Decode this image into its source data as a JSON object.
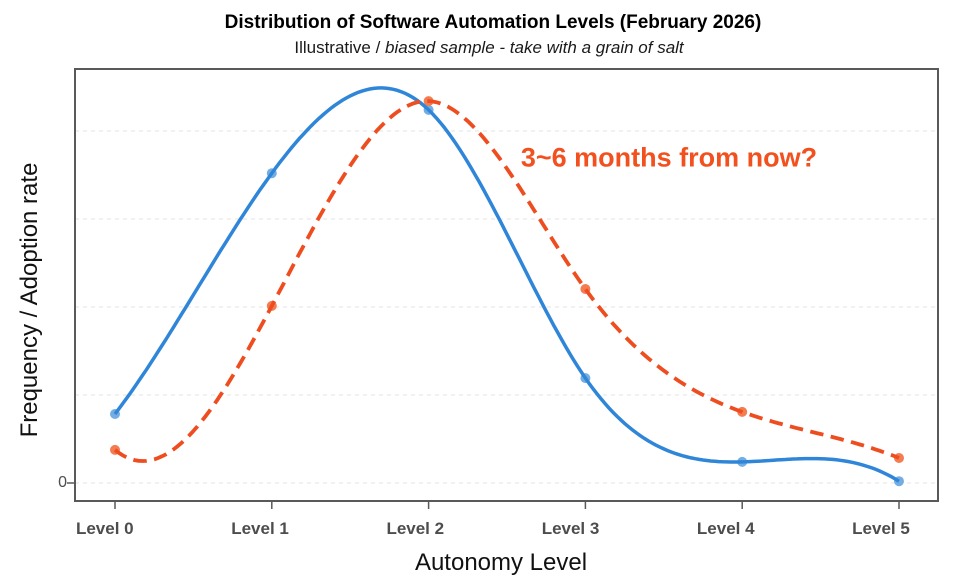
{
  "title": "Distribution of Software Automation Levels (February 2026)",
  "subtitle": {
    "regular": "Illustrative / ",
    "italic": "biased sample - take with a grain of salt"
  },
  "annotation": {
    "text": "3~6 months from now?",
    "color": "#f2501e"
  },
  "chart_data": {
    "type": "line",
    "categories": [
      "Level 0",
      "Level 1",
      "Level 2",
      "Level 3",
      "Level 4",
      "Level 5"
    ],
    "xlabel": "Autonomy Level",
    "ylabel": "Frequency / Adoption rate",
    "y_tick_labels": [
      "0"
    ],
    "ylim": [
      -0.05,
      1.18
    ],
    "grid_values": [
      0,
      0.25,
      0.5,
      0.75,
      1.0
    ],
    "grid": "horizontal-dashed",
    "legend": "none",
    "interpolation": "cubic-spline",
    "series": [
      {
        "name": "solid-blue",
        "color": "#2f86d9",
        "point_color": "#74ade2",
        "dash": "solid",
        "values": [
          0.196,
          0.88,
          1.06,
          0.298,
          0.06,
          0.005
        ]
      },
      {
        "name": "dashed-orange",
        "color": "#ee4d1f",
        "point_color": "#f47c51",
        "dash": "dashed",
        "values": [
          0.094,
          0.503,
          1.085,
          0.551,
          0.202,
          0.071
        ]
      }
    ]
  }
}
